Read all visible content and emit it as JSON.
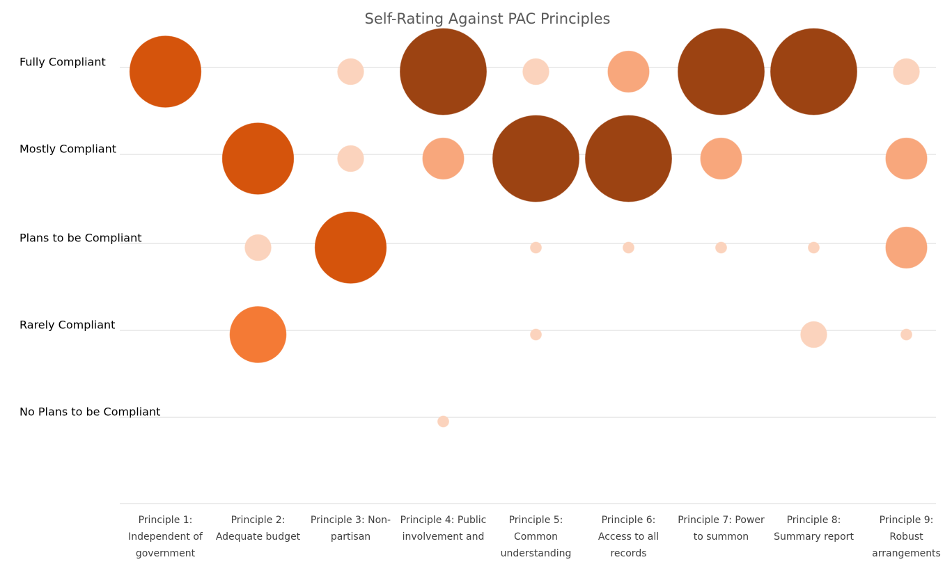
{
  "chart_data": {
    "type": "bubble",
    "title": "Self-Rating Against PAC Principles",
    "categories": [
      "Principle 1: Independent of government",
      "Principle 2: Adequate budget",
      "Principle 3: Non-partisan",
      "Principle 4: Public involvement and",
      "Principle 5: Common understanding",
      "Principle 6: Access to all records",
      "Principle 7: Power to summon",
      "Principle 8: Summary report",
      "Principle 9: Robust arrangements"
    ],
    "y_categories": [
      "Fully Compliant",
      "Mostly Compliant",
      "Plans to be Compliant",
      "Rarely Compliant",
      "No Plans to be Compliant"
    ],
    "grid": true,
    "series": [
      {
        "name": "Fully Compliant",
        "values": [
          5,
          null,
          2,
          6,
          2,
          3,
          6,
          6,
          2
        ],
        "colors": [
          "#d5540c",
          null,
          "#fbd3bd",
          "#9c4312",
          "#fbd3bd",
          "#f8a77c",
          "#9c4312",
          "#9c4312",
          "#fbd3bd"
        ]
      },
      {
        "name": "Mostly Compliant",
        "values": [
          null,
          5,
          2,
          3,
          6,
          6,
          3,
          null,
          3
        ],
        "colors": [
          null,
          "#d5540c",
          "#fbd3bd",
          "#f8a77c",
          "#9c4312",
          "#9c4312",
          "#f8a77c",
          null,
          "#f8a77c"
        ]
      },
      {
        "name": "Plans to be Compliant",
        "values": [
          null,
          2,
          5,
          null,
          1,
          1,
          1,
          1,
          3
        ],
        "colors": [
          null,
          "#fbd3bd",
          "#d5540c",
          null,
          "#fbd3bd",
          "#fbd3bd",
          "#fbd3bd",
          "#fbd3bd",
          "#f8a77c"
        ]
      },
      {
        "name": "Rarely Compliant",
        "values": [
          null,
          4,
          null,
          null,
          1,
          null,
          null,
          2,
          1
        ],
        "colors": [
          null,
          "#f47a35",
          null,
          null,
          "#fbd3bd",
          null,
          null,
          "#fbd3bd",
          "#fbd3bd"
        ]
      },
      {
        "name": "No Plans to be Compliant",
        "values": [
          null,
          null,
          null,
          1,
          null,
          null,
          null,
          null,
          null
        ],
        "colors": [
          null,
          null,
          null,
          "#fbd3bd",
          null,
          null,
          null,
          null,
          null
        ]
      }
    ]
  }
}
